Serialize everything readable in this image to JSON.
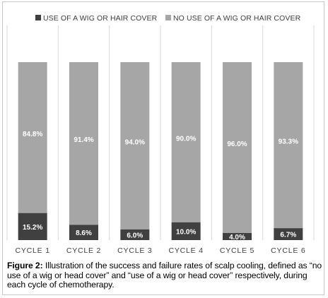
{
  "chart_data": {
    "type": "bar",
    "stacked": true,
    "categories": [
      "CYCLE 1",
      "CYCLE 2",
      "CYCLE 3",
      "CYCLE 4",
      "CYCLE 5",
      "CYCLE 6"
    ],
    "series": [
      {
        "name": "USE OF A WIG OR HAIR COVER",
        "color": "#404040",
        "values": [
          15.2,
          8.6,
          6.0,
          10.0,
          4.0,
          6.7
        ],
        "labels": [
          "15.2%",
          "8.6%",
          "6.0%",
          "10.0%",
          "4.0%",
          "6.7%"
        ]
      },
      {
        "name": "NO USE OF A WIG OR HAIR COVER",
        "color": "#a6a6a6",
        "values": [
          84.8,
          91.4,
          94.0,
          90.0,
          96.0,
          93.3
        ],
        "labels": [
          "84.8%",
          "91.4%",
          "94.0%",
          "90.0%",
          "96.0%",
          "93.3%"
        ]
      }
    ],
    "ylim": [
      0,
      100
    ],
    "grid": false,
    "legend_position": "top"
  },
  "caption": {
    "lead": "Figure 2:",
    "text": " Illustration of the success and failure rates of scalp cooling, defined as “no use of a wig or head cover” and “use of a wig or head cover” respectively, during each cycle of chemotherapy."
  }
}
